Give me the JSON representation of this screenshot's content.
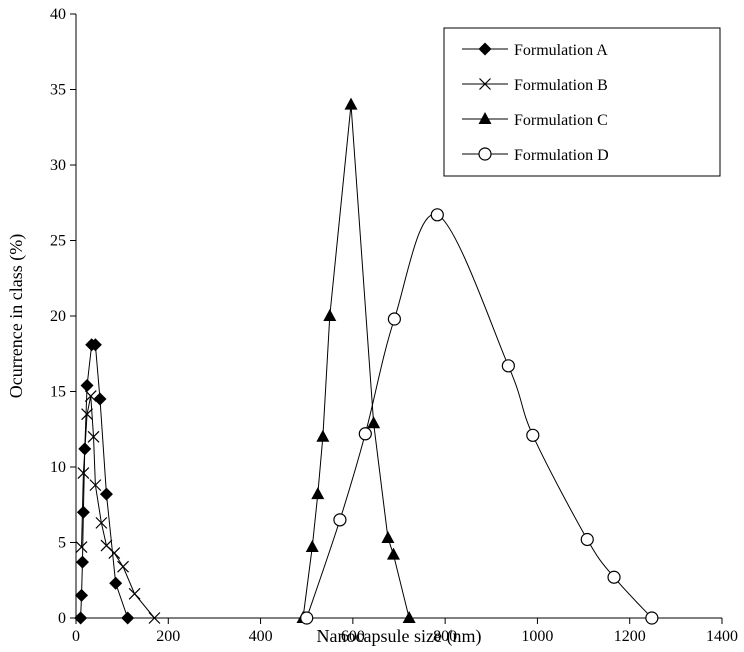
{
  "chart_data": {
    "type": "line",
    "title": "",
    "xlabel": "Nanocapsule size (nm)",
    "ylabel": "Ocurrence in class (%)",
    "xlim": [
      0,
      1400
    ],
    "ylim": [
      0,
      40
    ],
    "xticks": [
      0,
      200,
      400,
      600,
      800,
      1000,
      1200,
      1400
    ],
    "yticks": [
      0,
      5,
      10,
      15,
      20,
      25,
      30,
      35,
      40
    ],
    "grid": false,
    "legend_position": "top-right",
    "series": [
      {
        "name": "Formulation A",
        "marker": "diamond-filled",
        "smooth": false,
        "points": [
          [
            10,
            0
          ],
          [
            12,
            1.5
          ],
          [
            14,
            3.7
          ],
          [
            16,
            7
          ],
          [
            19,
            11.2
          ],
          [
            24,
            15.4
          ],
          [
            34,
            18.1
          ],
          [
            42,
            18.1
          ],
          [
            52,
            14.5
          ],
          [
            66,
            8.2
          ],
          [
            86,
            2.3
          ],
          [
            112,
            0
          ]
        ]
      },
      {
        "name": "Formulation B",
        "marker": "x",
        "smooth": false,
        "points": [
          [
            12,
            4.7
          ],
          [
            16,
            9.6
          ],
          [
            24,
            13.5
          ],
          [
            32,
            14.7
          ],
          [
            38,
            12
          ],
          [
            42,
            8.8
          ],
          [
            55,
            6.3
          ],
          [
            66,
            4.8
          ],
          [
            83,
            4.3
          ],
          [
            102,
            3.4
          ],
          [
            127,
            1.6
          ],
          [
            170,
            0
          ]
        ]
      },
      {
        "name": "Formulation C",
        "marker": "triangle-filled",
        "smooth": false,
        "points": [
          [
            492,
            0
          ],
          [
            512,
            4.7
          ],
          [
            524,
            8.2
          ],
          [
            535,
            12
          ],
          [
            550,
            20
          ],
          [
            596,
            34
          ],
          [
            645,
            12.9
          ],
          [
            676,
            5.3
          ],
          [
            688,
            4.2
          ],
          [
            722,
            0
          ]
        ]
      },
      {
        "name": "Formulation D",
        "marker": "circle-open",
        "smooth": true,
        "points": [
          [
            500,
            0
          ],
          [
            572,
            6.5
          ],
          [
            627,
            12.2
          ],
          [
            690,
            19.8
          ],
          [
            783,
            26.7
          ],
          [
            937,
            16.7
          ],
          [
            990,
            12.1
          ],
          [
            1108,
            5.2
          ],
          [
            1166,
            2.7
          ],
          [
            1248,
            0
          ]
        ]
      }
    ]
  }
}
